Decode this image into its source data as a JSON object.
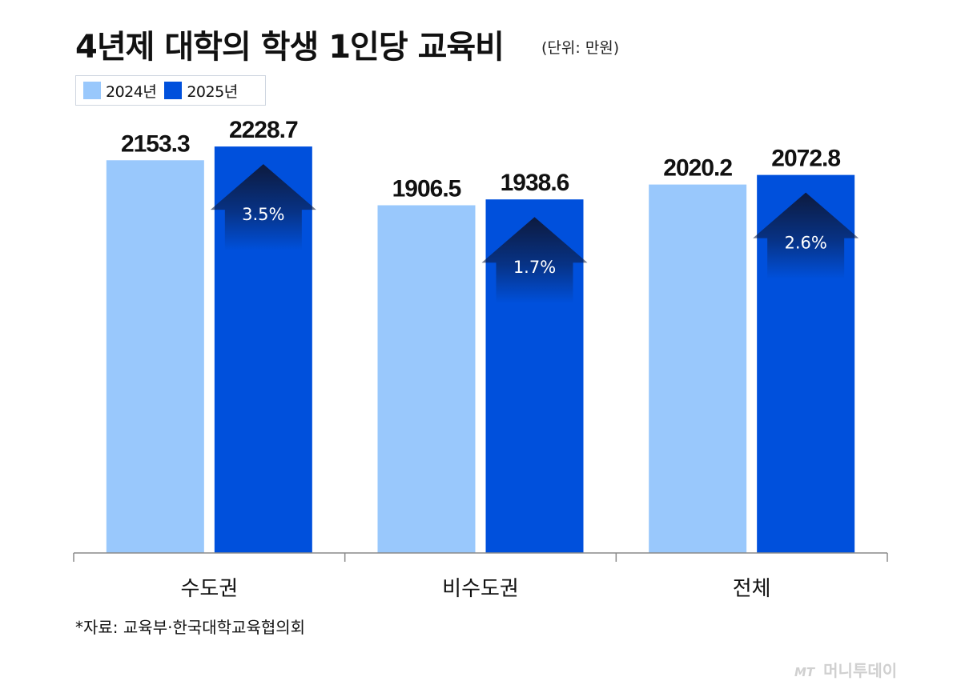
{
  "title": "4년제 대학의 학생 1인당 교육비",
  "unit": "(단위: 만원)",
  "source": "*자료: 교육부·한국대학교육협의회",
  "logo": {
    "mark": "MT",
    "text": "머니투데이"
  },
  "colors": {
    "series_2024": "#99c8fc",
    "series_2025": "#0050dc",
    "arrow_top": "#0d1a3e"
  },
  "chart_data": {
    "type": "bar",
    "title": "4년제 대학의 학생 1인당 교육비",
    "categories": [
      "수도권",
      "비수도권",
      "전체"
    ],
    "series": [
      {
        "name": "2024년",
        "values": [
          2153.3,
          1906.5,
          2020.2
        ],
        "labels": [
          "2153.3",
          "1906.5",
          "2020.2"
        ]
      },
      {
        "name": "2025년",
        "values": [
          2228.7,
          1938.6,
          2072.8
        ],
        "labels": [
          "2228.7",
          "1938.6",
          "2072.8"
        ]
      }
    ],
    "annotations": [
      "3.5%",
      "1.7%",
      "2.6%"
    ],
    "legend": "top-left",
    "grid": false,
    "ylim": [
      0,
      2330
    ]
  }
}
